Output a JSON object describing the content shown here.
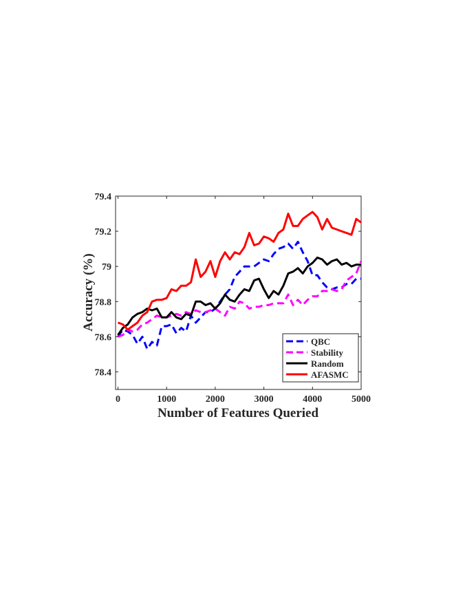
{
  "chart_data": {
    "type": "line",
    "title": "",
    "xlabel": "Number of Features Queried",
    "ylabel": "Accuracy (%)",
    "xlim": [
      -50,
      5000
    ],
    "ylim": [
      78.3,
      79.4
    ],
    "xticks": [
      0,
      1000,
      2000,
      3000,
      4000,
      5000
    ],
    "xtick_labels": [
      "0",
      "1000",
      "2000",
      "3000",
      "4000",
      "5000"
    ],
    "yticks": [
      78.4,
      78.6,
      78.8,
      79.0,
      79.2,
      79.4
    ],
    "ytick_labels": [
      "78.4",
      "78.6",
      "78.8",
      "79",
      "79.2",
      "79.4"
    ],
    "grid": false,
    "legend_position": "bottom-right",
    "series": [
      {
        "name": "QBC",
        "color": "#0000ff",
        "style": "dashed",
        "x": [
          0,
          100,
          200,
          300,
          400,
          500,
          600,
          700,
          800,
          900,
          1000,
          1100,
          1200,
          1300,
          1400,
          1500,
          1600,
          1700,
          1800,
          1900,
          2000,
          2100,
          2200,
          2300,
          2400,
          2500,
          2600,
          2700,
          2800,
          2900,
          3000,
          3100,
          3200,
          3300,
          3400,
          3500,
          3600,
          3700,
          3800,
          3900,
          4000,
          4100,
          4200,
          4300,
          4400,
          4500,
          4600,
          4700,
          4800,
          4900,
          5000
        ],
        "y": [
          78.6,
          78.64,
          78.63,
          78.61,
          78.56,
          78.6,
          78.53,
          78.57,
          78.55,
          78.66,
          78.66,
          78.67,
          78.62,
          78.65,
          78.63,
          78.72,
          78.68,
          78.71,
          78.74,
          78.74,
          78.76,
          78.8,
          78.84,
          78.87,
          78.94,
          78.97,
          79.0,
          79.0,
          79.0,
          79.02,
          79.04,
          79.03,
          79.07,
          79.1,
          79.11,
          79.13,
          79.1,
          79.14,
          79.08,
          79.03,
          78.95,
          78.95,
          78.91,
          78.88,
          78.87,
          78.88,
          78.88,
          78.9,
          78.9,
          78.93,
          78.93
        ]
      },
      {
        "name": "Stability",
        "color": "#ff00ff",
        "style": "dashed",
        "x": [
          0,
          100,
          200,
          300,
          400,
          500,
          600,
          700,
          800,
          900,
          1000,
          1100,
          1200,
          1300,
          1400,
          1500,
          1600,
          1700,
          1800,
          1900,
          2000,
          2100,
          2200,
          2300,
          2400,
          2500,
          2600,
          2700,
          2800,
          2900,
          3000,
          3100,
          3200,
          3300,
          3400,
          3500,
          3600,
          3700,
          3800,
          3900,
          4000,
          4100,
          4200,
          4300,
          4400,
          4500,
          4600,
          4700,
          4800,
          4900,
          5000
        ],
        "y": [
          78.6,
          78.61,
          78.64,
          78.63,
          78.64,
          78.67,
          78.68,
          78.7,
          78.72,
          78.71,
          78.71,
          78.72,
          78.73,
          78.72,
          78.74,
          78.73,
          78.75,
          78.74,
          78.74,
          78.75,
          78.76,
          78.74,
          78.72,
          78.77,
          78.76,
          78.8,
          78.79,
          78.76,
          78.77,
          78.77,
          78.78,
          78.78,
          78.79,
          78.79,
          78.79,
          78.84,
          78.78,
          78.81,
          78.78,
          78.81,
          78.83,
          78.83,
          78.86,
          78.86,
          78.87,
          78.86,
          78.87,
          78.92,
          78.94,
          78.96,
          79.03
        ]
      },
      {
        "name": "Random",
        "color": "#000000",
        "style": "solid",
        "x": [
          0,
          100,
          200,
          300,
          400,
          500,
          600,
          700,
          800,
          900,
          1000,
          1100,
          1200,
          1300,
          1400,
          1500,
          1600,
          1700,
          1800,
          1900,
          2000,
          2100,
          2200,
          2300,
          2400,
          2500,
          2600,
          2700,
          2800,
          2900,
          3000,
          3100,
          3200,
          3300,
          3400,
          3500,
          3600,
          3700,
          3800,
          3900,
          4000,
          4100,
          4200,
          4300,
          4400,
          4500,
          4600,
          4700,
          4800,
          4900,
          5000
        ],
        "y": [
          78.61,
          78.65,
          78.67,
          78.71,
          78.73,
          78.74,
          78.76,
          78.75,
          78.76,
          78.71,
          78.71,
          78.74,
          78.71,
          78.7,
          78.73,
          78.72,
          78.8,
          78.8,
          78.78,
          78.79,
          78.76,
          78.79,
          78.84,
          78.81,
          78.8,
          78.84,
          78.87,
          78.86,
          78.92,
          78.93,
          78.87,
          78.82,
          78.86,
          78.84,
          78.89,
          78.96,
          78.97,
          78.99,
          78.96,
          79.0,
          79.02,
          79.05,
          79.04,
          79.01,
          79.03,
          79.04,
          79.01,
          79.02,
          79.0,
          79.01,
          79.01
        ]
      },
      {
        "name": "AFASMC",
        "color": "#ff0000",
        "style": "solid",
        "x": [
          0,
          100,
          200,
          300,
          400,
          500,
          600,
          700,
          800,
          900,
          1000,
          1100,
          1200,
          1300,
          1400,
          1500,
          1600,
          1700,
          1800,
          1900,
          2000,
          2100,
          2200,
          2300,
          2400,
          2500,
          2600,
          2700,
          2800,
          2900,
          3000,
          3100,
          3200,
          3300,
          3400,
          3500,
          3600,
          3700,
          3800,
          3900,
          4000,
          4100,
          4200,
          4300,
          4400,
          4500,
          4600,
          4700,
          4800,
          4900,
          5000
        ],
        "y": [
          78.68,
          78.67,
          78.64,
          78.66,
          78.68,
          78.72,
          78.74,
          78.8,
          78.81,
          78.81,
          78.82,
          78.87,
          78.86,
          78.89,
          78.89,
          78.91,
          79.04,
          78.94,
          78.97,
          79.03,
          78.94,
          79.03,
          79.08,
          79.04,
          79.08,
          79.07,
          79.11,
          79.19,
          79.12,
          79.13,
          79.17,
          79.16,
          79.14,
          79.19,
          79.21,
          79.3,
          79.23,
          79.23,
          79.27,
          79.29,
          79.31,
          79.28,
          79.21,
          79.27,
          79.22,
          79.21,
          79.2,
          79.19,
          79.18,
          79.27,
          79.25
        ]
      }
    ]
  }
}
